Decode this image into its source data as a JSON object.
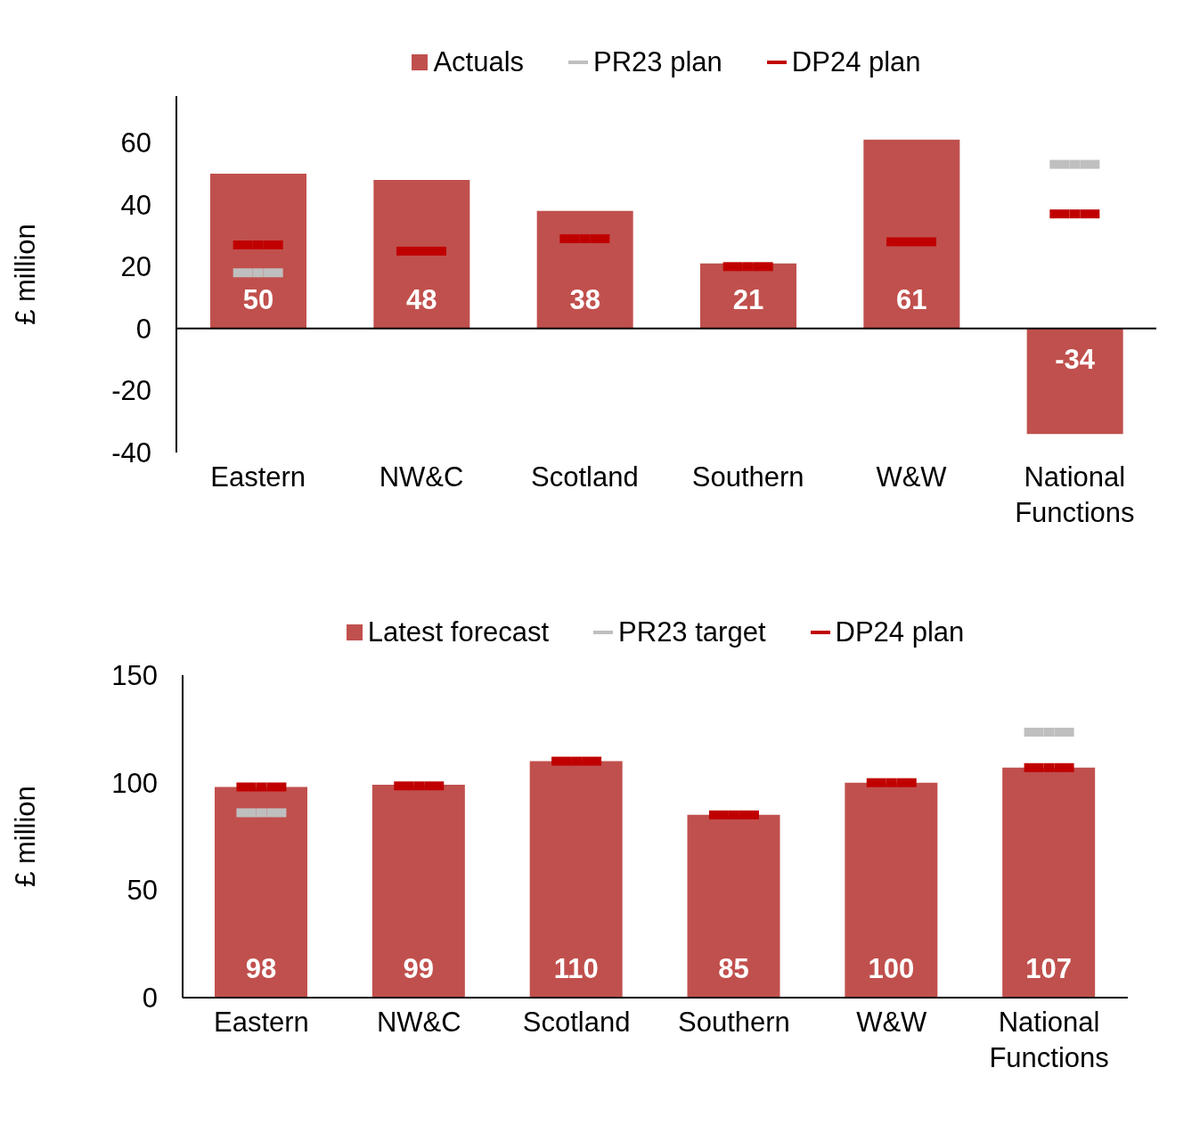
{
  "chart_data": [
    {
      "type": "bar",
      "categories": [
        "Eastern",
        "NW&C",
        "Scotland",
        "Southern",
        "W&W",
        "National Functions"
      ],
      "ylabel": "£ million",
      "ylim": [
        -40,
        75
      ],
      "yticks": [
        -40,
        -20,
        0,
        20,
        40,
        60
      ],
      "legend": "top",
      "series": [
        {
          "name": "Actuals",
          "color": "#c0504d",
          "values": [
            50,
            48,
            38,
            21,
            61,
            -34
          ],
          "value_labels": [
            "50",
            "48",
            "38",
            "21",
            "61",
            "-34"
          ]
        },
        {
          "name": "PR23 plan",
          "type": "scatter",
          "color": "#bfbfbf",
          "values": [
            18,
            null,
            null,
            null,
            null,
            53
          ]
        },
        {
          "name": "DP24 plan",
          "type": "scatter",
          "color": "#c00000",
          "values": [
            27,
            25,
            29,
            20,
            28,
            37
          ]
        }
      ]
    },
    {
      "type": "bar",
      "categories": [
        "Eastern",
        "NW&C",
        "Scotland",
        "Southern",
        "W&W",
        "National Functions"
      ],
      "ylabel": "£ million",
      "ylim": [
        0,
        150
      ],
      "yticks": [
        0,
        50,
        100,
        150
      ],
      "legend": "top",
      "series": [
        {
          "name": "Latest forecast",
          "color": "#c0504d",
          "values": [
            98,
            99,
            110,
            85,
            100,
            107
          ],
          "value_labels": [
            "98",
            "99",
            "110",
            "85",
            "100",
            "107"
          ]
        },
        {
          "name": "PR23 target",
          "type": "scatter",
          "color": "#bfbfbf",
          "values": [
            86,
            null,
            null,
            null,
            null,
            123.5
          ]
        },
        {
          "name": "DP24 plan",
          "type": "scatter",
          "color": "#c00000",
          "values": [
            98,
            98.5,
            110,
            85,
            100,
            107
          ]
        }
      ]
    }
  ]
}
